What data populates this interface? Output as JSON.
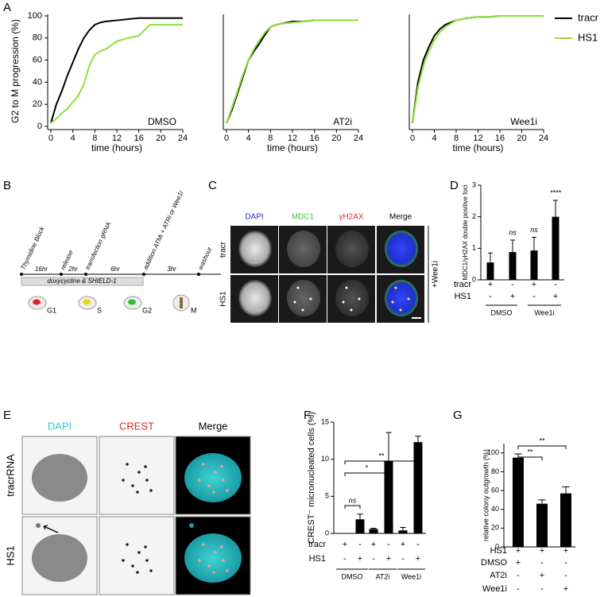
{
  "panels": [
    "A",
    "B",
    "C",
    "D",
    "E",
    "F",
    "G"
  ],
  "chart_data": [
    {
      "type": "line",
      "y_label": "G2 to M progression (%)",
      "x_label": "time (hours)",
      "annotation": "DMSO",
      "x": [
        0,
        1,
        2,
        3,
        4,
        5,
        6,
        7,
        8,
        9,
        10,
        12,
        14,
        16,
        18,
        20,
        24
      ],
      "series": [
        {
          "color": "#000000",
          "values": [
            3,
            20,
            32,
            46,
            58,
            70,
            80,
            87,
            92,
            94,
            95,
            96,
            97,
            98,
            98,
            98,
            98
          ]
        },
        {
          "color": "#8ee03a",
          "values": [
            3,
            7,
            12,
            16,
            22,
            28,
            38,
            55,
            65,
            68,
            70,
            77,
            80,
            82,
            92,
            92,
            92
          ]
        }
      ],
      "xlim": [
        0,
        24
      ],
      "xticks": [
        0,
        4,
        8,
        12,
        16,
        20,
        24
      ],
      "ylim": [
        0,
        100
      ],
      "yticks": [
        0,
        20,
        40,
        60,
        80,
        100
      ]
    },
    {
      "type": "line",
      "x_label": "time (hours)",
      "annotation": "AT2i",
      "x": [
        0,
        1,
        2,
        3,
        4,
        5,
        6,
        7,
        8,
        9,
        10,
        12,
        14,
        16,
        18,
        20,
        24
      ],
      "series": [
        {
          "color": "#000000",
          "values": [
            3,
            15,
            30,
            45,
            60,
            68,
            75,
            83,
            90,
            92,
            93,
            95,
            95,
            96,
            96,
            96,
            96
          ]
        },
        {
          "color": "#8ee03a",
          "values": [
            3,
            17,
            32,
            47,
            60,
            70,
            78,
            85,
            90,
            92,
            93,
            94,
            95,
            96,
            96,
            96,
            96
          ]
        }
      ],
      "xlim": [
        0,
        24
      ],
      "xticks": [
        0,
        4,
        8,
        12,
        16,
        20,
        24
      ],
      "ylim": [
        0,
        100
      ]
    },
    {
      "type": "line",
      "x_label": "time (hours)",
      "annotation": "Wee1i",
      "x": [
        0,
        1,
        2,
        3,
        4,
        5,
        6,
        7,
        8,
        9,
        10,
        12,
        14,
        16,
        18,
        20,
        24
      ],
      "series": [
        {
          "name": "tracr",
          "color": "#000000",
          "values": [
            3,
            40,
            60,
            72,
            82,
            88,
            92,
            94,
            96,
            97,
            98,
            99,
            99,
            100,
            100,
            100,
            100
          ]
        },
        {
          "name": "HS1",
          "color": "#8ee03a",
          "values": [
            3,
            35,
            55,
            68,
            78,
            85,
            90,
            93,
            96,
            97,
            98,
            99,
            99,
            100,
            100,
            100,
            100
          ]
        }
      ],
      "xlim": [
        0,
        24
      ],
      "xticks": [
        0,
        4,
        8,
        12,
        16,
        20,
        24
      ],
      "ylim": [
        0,
        100
      ],
      "legend": "upper right"
    },
    {
      "type": "bar",
      "y_label": "MDC1/γH2AX double positive foci",
      "color": "#000000",
      "values": [
        0.55,
        0.88,
        0.93,
        2.0
      ],
      "errors": [
        0.3,
        0.38,
        0.42,
        0.52
      ],
      "ylim": [
        0,
        3
      ],
      "yticks": [
        0,
        1,
        2,
        3
      ],
      "significance": [
        "ns",
        "ns",
        "****"
      ],
      "conditions": [
        {
          "name": "tracr",
          "marks": [
            "+",
            "-",
            "+",
            "-"
          ]
        },
        {
          "name": "HS1",
          "marks": [
            "-",
            "+",
            "-",
            "+"
          ]
        }
      ],
      "groups": [
        "DMSO",
        "Wee1i"
      ]
    },
    {
      "type": "bar",
      "y_label": "CREST⁻ micronucleated cells (%)",
      "color": "#000000",
      "values": [
        0,
        1.9,
        0.6,
        9.8,
        0.4,
        12.3
      ],
      "errors": [
        0,
        0.7,
        0.1,
        3.8,
        0.4,
        0.8
      ],
      "ylim": [
        0,
        15
      ],
      "yticks": [
        0,
        5,
        10,
        15
      ],
      "significance": [
        "ns",
        "*",
        "**"
      ],
      "conditions": [
        {
          "name": "tracr",
          "marks": [
            "+",
            "-",
            "+",
            "-",
            "+",
            "-"
          ]
        },
        {
          "name": "HS1",
          "marks": [
            "-",
            "+",
            "-",
            "+",
            "-",
            "+"
          ]
        }
      ],
      "groups": [
        "DMSO",
        "AT2i",
        "Wee1i"
      ]
    },
    {
      "type": "bar",
      "y_label": "relative colony outgrowth (%)",
      "color": "#000000",
      "values": [
        95,
        46,
        57
      ],
      "errors": [
        4,
        4,
        7
      ],
      "ylim": [
        0,
        110
      ],
      "yticks": [
        0,
        20,
        40,
        60,
        80,
        100
      ],
      "significance": [
        "**",
        "**"
      ],
      "conditions": [
        {
          "name": "HS1",
          "marks": [
            "+",
            "+",
            "+"
          ]
        },
        {
          "name": "DMSO",
          "marks": [
            "+",
            "-",
            "-"
          ]
        },
        {
          "name": "AT2i",
          "marks": [
            "-",
            "+",
            "-"
          ]
        },
        {
          "name": "Wee1i",
          "marks": [
            "-",
            "-",
            "+"
          ]
        }
      ]
    }
  ],
  "timeline": {
    "events": [
      "Thymidine Block",
      "release",
      "transfection gRNA",
      "addition ATMi + ATRi or Wee1i",
      "washout"
    ],
    "durations": [
      "16hr",
      "2hr",
      "6hr",
      "3hr"
    ],
    "treatment": "doxycycline & SHIELD-1",
    "phases": [
      "G1",
      "S",
      "G2",
      "M"
    ]
  },
  "micrographs_C": {
    "channels": [
      "DAPI",
      "MDC1",
      "γH2AX",
      "Merge"
    ],
    "rows": [
      "tracr",
      "HS1"
    ],
    "treatment": "+Wee1i"
  },
  "micrographs_E": {
    "channels": [
      "DAPI",
      "CREST",
      "Merge"
    ],
    "rows": [
      "tracrRNA",
      "HS1"
    ]
  }
}
